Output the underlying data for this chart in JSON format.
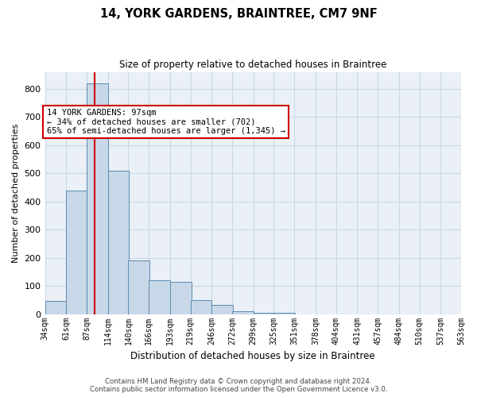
{
  "title": "14, YORK GARDENS, BRAINTREE, CM7 9NF",
  "subtitle": "Size of property relative to detached houses in Braintree",
  "xlabel": "Distribution of detached houses by size in Braintree",
  "ylabel": "Number of detached properties",
  "footer_line1": "Contains HM Land Registry data © Crown copyright and database right 2024.",
  "footer_line2": "Contains public sector information licensed under the Open Government Licence v3.0.",
  "bar_color": "#c8d8e8",
  "bar_edge_color": "#5a8ab0",
  "grid_color": "#c8d8e8",
  "bg_color": "#eaf0f6",
  "property_size": 97,
  "property_line_color": "#cc0000",
  "annotation_text": "14 YORK GARDENS: 97sqm\n← 34% of detached houses are smaller (702)\n65% of semi-detached houses are larger (1,345) →",
  "bin_edges": [
    34,
    61,
    87,
    114,
    140,
    166,
    193,
    219,
    246,
    272,
    299,
    325,
    351,
    378,
    404,
    431,
    457,
    484,
    510,
    537,
    563
  ],
  "bin_counts": [
    47,
    440,
    820,
    510,
    190,
    120,
    115,
    50,
    33,
    10,
    5,
    5,
    0,
    0,
    0,
    0,
    0,
    0,
    0,
    0
  ],
  "ylim": [
    0,
    860
  ],
  "yticks": [
    0,
    100,
    200,
    300,
    400,
    500,
    600,
    700,
    800
  ]
}
